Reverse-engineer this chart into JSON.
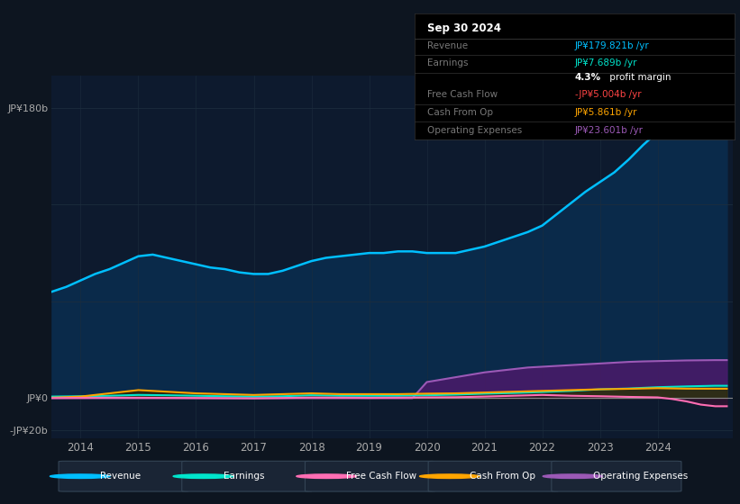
{
  "background_color": "#0d1520",
  "plot_bg_color": "#0d1a2e",
  "fig_width": 8.21,
  "fig_height": 5.6,
  "dpi": 100,
  "ylim": [
    -25,
    200
  ],
  "xlim": [
    2013.5,
    2025.3
  ],
  "ytick_positions": [
    -20,
    0,
    60,
    120,
    180
  ],
  "ytick_labels": [
    "-JP¥20b",
    "JP¥0",
    "",
    "",
    "JP¥180b"
  ],
  "xtick_labels": [
    "2014",
    "2015",
    "2016",
    "2017",
    "2018",
    "2019",
    "2020",
    "2021",
    "2022",
    "2023",
    "2024"
  ],
  "xtick_positions": [
    2014,
    2015,
    2016,
    2017,
    2018,
    2019,
    2020,
    2021,
    2022,
    2023,
    2024
  ],
  "grid_color": "#1c2d3d",
  "axis_label_color": "#aaaaaa",
  "revenue_color": "#00bfff",
  "earnings_color": "#00e5cc",
  "fcf_color": "#ff6eb4",
  "cashfromop_color": "#ffa500",
  "opex_color": "#9b59b6",
  "series": {
    "revenue": {
      "years": [
        2013.5,
        2013.75,
        2014.0,
        2014.25,
        2014.5,
        2014.75,
        2015.0,
        2015.25,
        2015.5,
        2015.75,
        2016.0,
        2016.25,
        2016.5,
        2016.75,
        2017.0,
        2017.25,
        2017.5,
        2017.75,
        2018.0,
        2018.25,
        2018.5,
        2018.75,
        2019.0,
        2019.25,
        2019.5,
        2019.75,
        2020.0,
        2020.25,
        2020.5,
        2020.75,
        2021.0,
        2021.25,
        2021.5,
        2021.75,
        2022.0,
        2022.25,
        2022.5,
        2022.75,
        2023.0,
        2023.25,
        2023.5,
        2023.75,
        2024.0,
        2024.25,
        2024.5,
        2024.75,
        2025.0,
        2025.2
      ],
      "values": [
        66,
        69,
        73,
        77,
        80,
        84,
        88,
        89,
        87,
        85,
        83,
        81,
        80,
        78,
        77,
        77,
        79,
        82,
        85,
        87,
        88,
        89,
        90,
        90,
        91,
        91,
        90,
        90,
        90,
        92,
        94,
        97,
        100,
        103,
        107,
        114,
        121,
        128,
        134,
        140,
        148,
        157,
        165,
        170,
        175,
        179,
        180,
        180
      ]
    },
    "earnings": {
      "years": [
        2013.5,
        2014.0,
        2014.5,
        2015.0,
        2015.5,
        2016.0,
        2016.5,
        2017.0,
        2017.5,
        2018.0,
        2018.5,
        2019.0,
        2019.5,
        2020.0,
        2020.5,
        2021.0,
        2021.5,
        2022.0,
        2022.5,
        2023.0,
        2023.5,
        2024.0,
        2024.5,
        2025.0,
        2025.2
      ],
      "values": [
        1.0,
        1.2,
        1.5,
        2.0,
        1.8,
        1.5,
        1.2,
        1.0,
        1.2,
        1.8,
        1.5,
        1.5,
        1.5,
        1.8,
        2.2,
        2.8,
        3.2,
        3.8,
        4.5,
        5.5,
        6.0,
        6.8,
        7.3,
        7.689,
        7.689
      ]
    },
    "fcf": {
      "years": [
        2013.5,
        2014.0,
        2014.5,
        2015.0,
        2015.5,
        2016.0,
        2016.5,
        2017.0,
        2017.5,
        2018.0,
        2018.5,
        2019.0,
        2019.5,
        2020.0,
        2020.5,
        2021.0,
        2021.5,
        2022.0,
        2022.5,
        2023.0,
        2023.5,
        2024.0,
        2024.25,
        2024.5,
        2024.75,
        2025.0,
        2025.2
      ],
      "values": [
        0.1,
        0.2,
        0.3,
        0.3,
        0.2,
        0.1,
        0.0,
        -0.1,
        0.1,
        0.4,
        0.3,
        0.2,
        0.3,
        0.5,
        0.6,
        1.0,
        1.5,
        2.0,
        1.5,
        1.2,
        0.8,
        0.5,
        -0.5,
        -2.0,
        -4.0,
        -5.004,
        -5.004
      ]
    },
    "cashfromop": {
      "years": [
        2013.5,
        2014.0,
        2014.5,
        2015.0,
        2015.5,
        2016.0,
        2016.5,
        2017.0,
        2017.5,
        2018.0,
        2018.5,
        2019.0,
        2019.5,
        2020.0,
        2020.5,
        2021.0,
        2021.5,
        2022.0,
        2022.5,
        2023.0,
        2023.5,
        2024.0,
        2024.5,
        2025.0,
        2025.2
      ],
      "values": [
        0.3,
        1.0,
        3.0,
        5.0,
        4.0,
        3.0,
        2.5,
        2.0,
        2.5,
        3.0,
        2.5,
        2.5,
        2.5,
        2.8,
        3.0,
        3.5,
        4.0,
        4.5,
        5.0,
        5.5,
        5.8,
        6.2,
        5.9,
        5.861,
        5.861
      ]
    },
    "opex": {
      "years": [
        2013.5,
        2019.75,
        2020.0,
        2020.25,
        2020.5,
        2020.75,
        2021.0,
        2021.25,
        2021.5,
        2021.75,
        2022.0,
        2022.25,
        2022.5,
        2022.75,
        2023.0,
        2023.25,
        2023.5,
        2023.75,
        2024.0,
        2024.25,
        2024.5,
        2024.75,
        2025.0,
        2025.2
      ],
      "values": [
        0,
        0,
        10.0,
        11.5,
        13.0,
        14.5,
        16.0,
        17.0,
        18.0,
        19.0,
        19.5,
        20.0,
        20.5,
        21.0,
        21.5,
        22.0,
        22.5,
        22.8,
        23.0,
        23.2,
        23.4,
        23.5,
        23.601,
        23.601
      ]
    }
  },
  "info_box": {
    "title": "Sep 30 2024",
    "rows": [
      {
        "label": "Revenue",
        "value": "JP¥179.821b /yr",
        "value_color": "#00bfff"
      },
      {
        "label": "Earnings",
        "value": "JP¥7.689b /yr",
        "value_color": "#00e5cc"
      },
      {
        "label": "",
        "value_bold": "4.3%",
        "value_rest": " profit margin",
        "value_color": "#ffffff"
      },
      {
        "label": "Free Cash Flow",
        "value": "-JP¥5.004b /yr",
        "value_color": "#ff4444"
      },
      {
        "label": "Cash From Op",
        "value": "JP¥5.861b /yr",
        "value_color": "#ffa500"
      },
      {
        "label": "Operating Expenses",
        "value": "JP¥23.601b /yr",
        "value_color": "#9b59b6"
      }
    ]
  },
  "legend": [
    {
      "label": "Revenue",
      "color": "#00bfff"
    },
    {
      "label": "Earnings",
      "color": "#00e5cc"
    },
    {
      "label": "Free Cash Flow",
      "color": "#ff6eb4"
    },
    {
      "label": "Cash From Op",
      "color": "#ffa500"
    },
    {
      "label": "Operating Expenses",
      "color": "#9b59b6"
    }
  ]
}
